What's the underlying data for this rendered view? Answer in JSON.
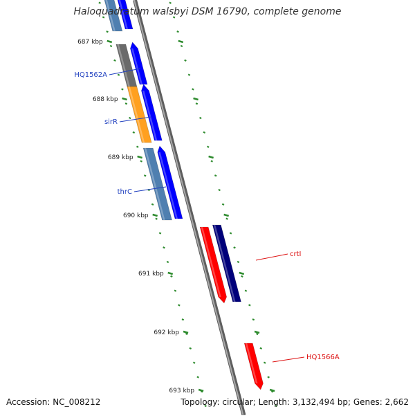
{
  "title": "Haloquadratum walsbyi DSM 16790, complete genome",
  "footer": {
    "accession": "Accession: NC_008212",
    "topology": "Topology: circular; Length: 3,132,494 bp; Genes: 2,662"
  },
  "colors": {
    "tick": "#2e8b2e",
    "backbone": "#888888",
    "blue": "#0000ff",
    "navy": "#00007a",
    "red": "#ff0000",
    "steelblue": "#4f7fb0",
    "gray": "#6a6a6a",
    "orange": "#ffa020",
    "label_blue": "#1f3fbf",
    "label_red": "#dd1111"
  },
  "ticks": [
    "687 kbp",
    "688 kbp",
    "689 kbp",
    "690 kbp",
    "691 kbp",
    "692 kbp",
    "693 kbp"
  ],
  "gene_labels": [
    {
      "name": "HQ1562A",
      "color": "label_blue"
    },
    {
      "name": "sirR",
      "color": "label_blue"
    },
    {
      "name": "thrC",
      "color": "label_blue"
    },
    {
      "name": "crtI",
      "color": "label_red"
    },
    {
      "name": "HQ1566A",
      "color": "label_red"
    }
  ]
}
